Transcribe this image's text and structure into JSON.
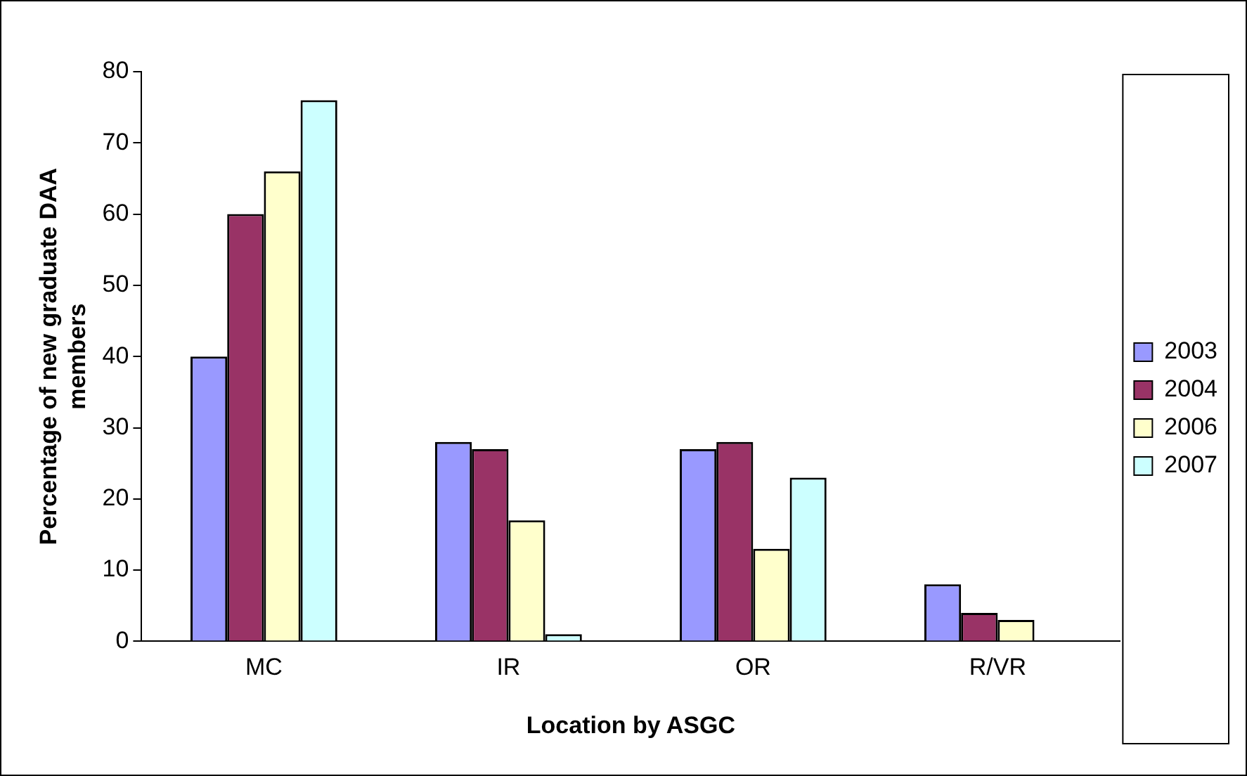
{
  "chart_data": {
    "type": "bar",
    "xlabel": "Location by ASGC",
    "ylabel": "Percentage of new graduate DAA members",
    "categories": [
      "MC",
      "IR",
      "OR",
      "R/VR"
    ],
    "series": [
      {
        "name": "2003",
        "color": "#9999ff",
        "values": [
          40,
          28,
          27,
          8
        ]
      },
      {
        "name": "2004",
        "color": "#993366",
        "values": [
          60,
          27,
          28,
          4
        ]
      },
      {
        "name": "2006",
        "color": "#ffffcc",
        "values": [
          66,
          17,
          13,
          3
        ]
      },
      {
        "name": "2007",
        "color": "#ccffff",
        "values": [
          76,
          1,
          23,
          null
        ]
      }
    ],
    "ylim": [
      0,
      80
    ],
    "yticks": [
      0,
      10,
      20,
      30,
      40,
      50,
      60,
      70,
      80
    ],
    "grid": false,
    "legend": "right"
  }
}
